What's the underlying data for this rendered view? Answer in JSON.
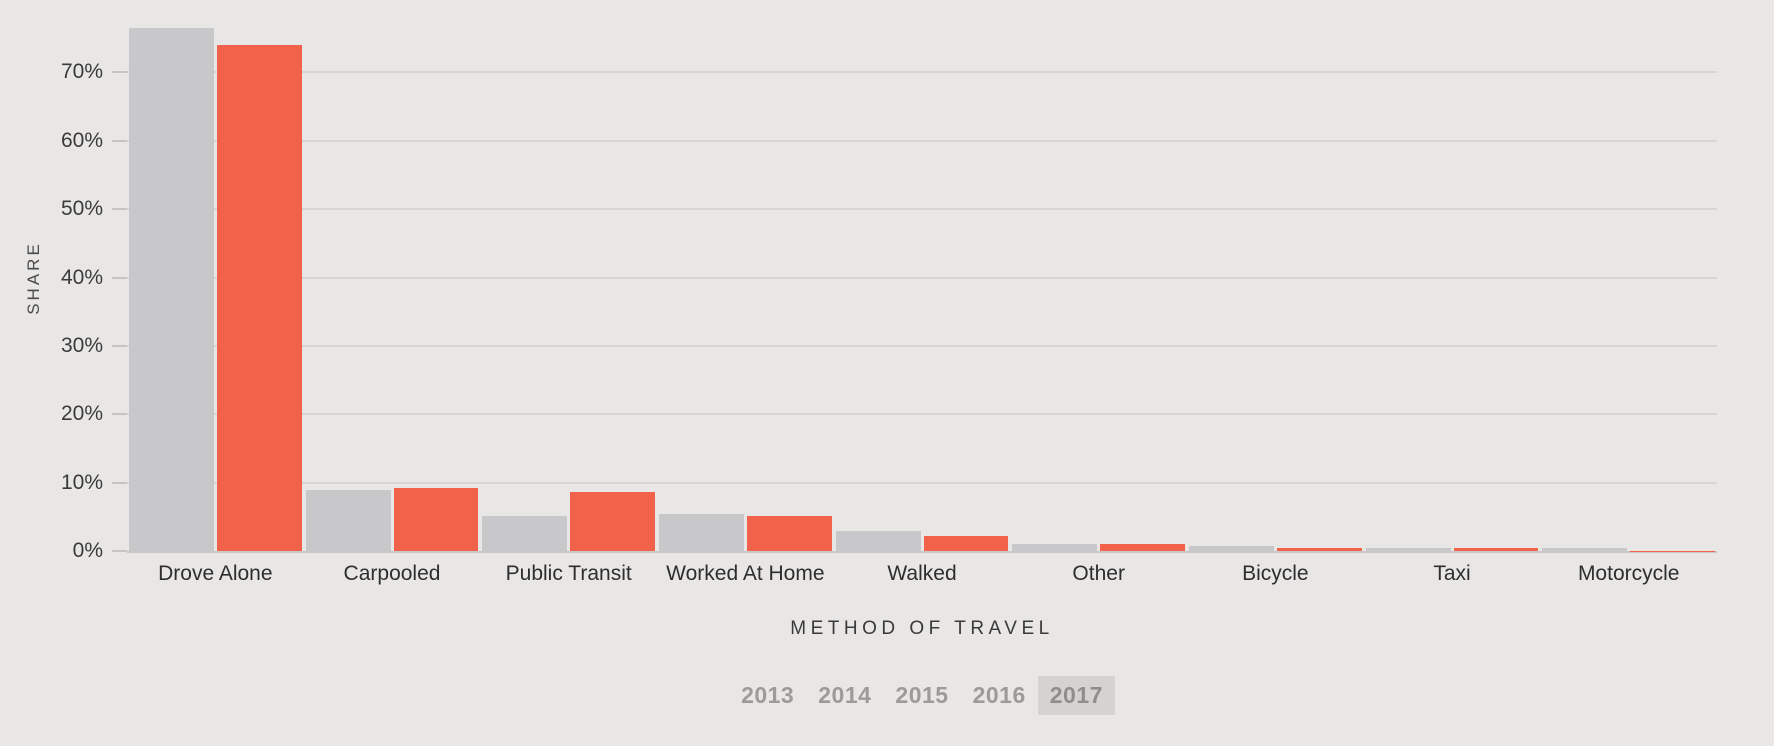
{
  "chart_data": {
    "type": "bar",
    "title": "",
    "xlabel": "METHOD OF TRAVEL",
    "ylabel": "SHARE",
    "categories": [
      "Drove Alone",
      "Carpooled",
      "Public Transit",
      "Worked At Home",
      "Walked",
      "Other",
      "Bicycle",
      "Taxi",
      "Motorcycle"
    ],
    "series": [
      {
        "name": "gray",
        "color": "#C8C8CB",
        "values": [
          76.5,
          8.9,
          5.1,
          5.4,
          2.9,
          1.0,
          0.7,
          0.4,
          0.4
        ]
      },
      {
        "name": "orange",
        "color": "#F0624A",
        "values": [
          74.0,
          9.2,
          8.7,
          5.1,
          2.2,
          1.0,
          0.5,
          0.5,
          0.05
        ]
      }
    ],
    "y_ticks": [
      0,
      10,
      20,
      30,
      40,
      50,
      60,
      70
    ],
    "y_tick_labels": [
      "0%",
      "10%",
      "20%",
      "30%",
      "40%",
      "50%",
      "60%",
      "70%"
    ],
    "ylim": [
      0,
      80
    ],
    "grid": "horizontal",
    "legend": "none"
  },
  "year_selector": {
    "options": [
      "2013",
      "2014",
      "2015",
      "2016",
      "2017"
    ],
    "selected": "2017"
  },
  "colors": {
    "background": "#E8E7E5",
    "bar_gray": "#C8C8CB",
    "bar_orange": "#F0624A",
    "gridline": "#D6D5D3",
    "axis_line": "#C9C8C6",
    "tick_text": "#3B3B3B",
    "axis_title_text": "#3A3A3A",
    "year_text": "#9C9B99",
    "year_selected_bg": "#D4D3D1"
  }
}
